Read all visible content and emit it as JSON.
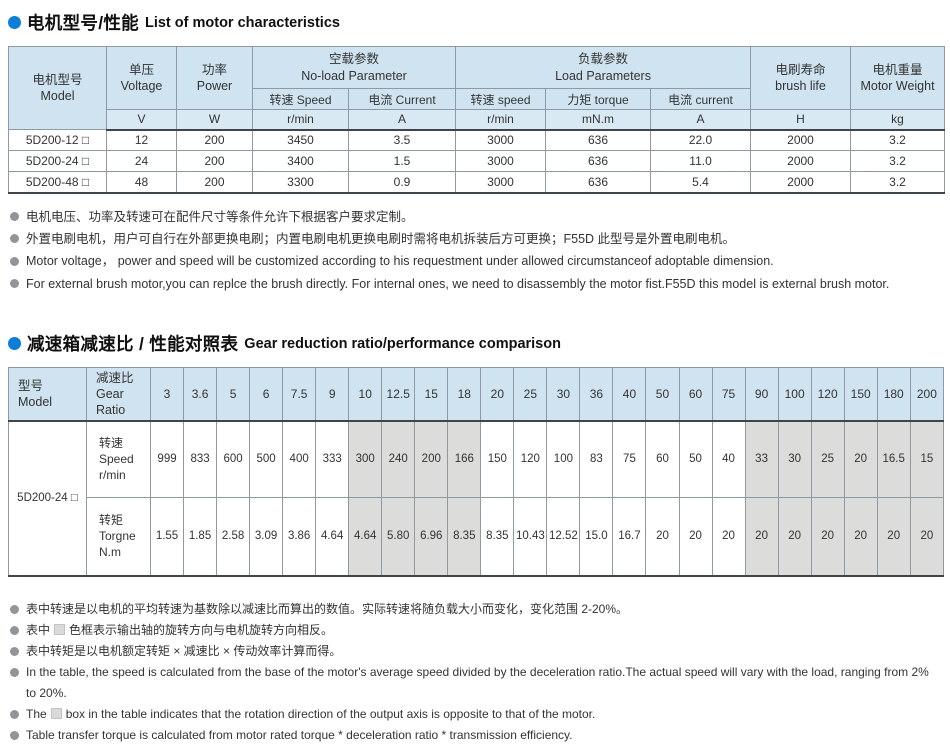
{
  "colors": {
    "accent_blue": "#0d7ed8",
    "header_bg": "#cfe4f0",
    "unit_row_bg": "#d8e9f4",
    "shaded_cell": "#dcdcda",
    "note_bullet": "#8f9599"
  },
  "section1": {
    "title_zh": "电机型号/性能",
    "title_en": "List of motor characteristics",
    "table": {
      "col_model": {
        "zh": "电机型号",
        "en": "Model"
      },
      "col_voltage": {
        "zh": "单压",
        "en": "Voltage",
        "unit": "V"
      },
      "col_power": {
        "zh": "功率",
        "en": "Power",
        "unit": "W"
      },
      "group_noload": {
        "zh": "空载参数",
        "en": "No-load Parameter",
        "cols": [
          {
            "label": "转速 Speed",
            "unit": "r/min"
          },
          {
            "label": "电流 Current",
            "unit": "A"
          }
        ]
      },
      "group_load": {
        "zh": "负载参数",
        "en": "Load Parameters",
        "cols": [
          {
            "label": "转速 speed",
            "unit": "r/min"
          },
          {
            "label": "力矩 torque",
            "unit": "mN.m"
          },
          {
            "label": "电流 current",
            "unit": "A"
          }
        ]
      },
      "col_brush": {
        "zh": "电刷寿命",
        "en": "brush life",
        "unit": "H"
      },
      "col_weight": {
        "zh": "电机重量",
        "en": "Motor Weight",
        "unit": "kg"
      },
      "rows": [
        [
          "5D200-12 □",
          "12",
          "200",
          "3450",
          "3.5",
          "3000",
          "636",
          "22.0",
          "2000",
          "3.2"
        ],
        [
          "5D200-24 □",
          "24",
          "200",
          "3400",
          "1.5",
          "3000",
          "636",
          "11.0",
          "2000",
          "3.2"
        ],
        [
          "5D200-48 □",
          "48",
          "200",
          "3300",
          "0.9",
          "3000",
          "636",
          "5.4",
          "2000",
          "3.2"
        ]
      ]
    },
    "notes": [
      {
        "pre": "电机电压、功率及转速可在配件尺寸等条件允许下根据客户要求定制。",
        "box": false,
        "post": ""
      },
      {
        "pre": "外置电刷电机，用户可自行在外部更换电刷；内置电刷电机更换电刷时需将电机拆装后方可更换；F55D 此型号是外置电刷电机。",
        "box": false,
        "post": ""
      },
      {
        "pre": "Motor voltage， power and speed will be customized according to his requestment under allowed circumstanceof adoptable dimension.",
        "box": false,
        "post": ""
      },
      {
        "pre": "For external brush motor,you can replce the brush directly. For internal ones, we need to disassembly the motor fist.F55D this model is external brush motor.",
        "box": false,
        "post": ""
      }
    ]
  },
  "section2": {
    "title_zh": "减速箱减速比 / 性能对照表",
    "title_en": "Gear reduction ratio/performance comparison",
    "table": {
      "col_model": {
        "zh": "型号",
        "en": "Model"
      },
      "col_ratio": {
        "zh": "减速比",
        "en": "Gear Ratio"
      },
      "model": "5D200-24 □",
      "ratios": [
        "3",
        "3.6",
        "5",
        "6",
        "7.5",
        "9",
        "10",
        "12.5",
        "15",
        "18",
        "20",
        "25",
        "30",
        "36",
        "40",
        "50",
        "60",
        "75",
        "90",
        "100",
        "120",
        "150",
        "180",
        "200"
      ],
      "row_speed": {
        "label_zh": "转速",
        "label_en": "Speed",
        "unit": "r/min",
        "values": [
          "999",
          "833",
          "600",
          "500",
          "400",
          "333",
          "300",
          "240",
          "200",
          "166",
          "150",
          "120",
          "100",
          "83",
          "75",
          "60",
          "50",
          "40",
          "33",
          "30",
          "25",
          "20",
          "16.5",
          "15"
        ]
      },
      "row_torque": {
        "label_zh": "转矩",
        "label_en": "Torgne",
        "unit": "N.m",
        "values": [
          "1.55",
          "1.85",
          "2.58",
          "3.09",
          "3.86",
          "4.64",
          "4.64",
          "5.80",
          "6.96",
          "8.35",
          "8.35",
          "10.43",
          "12.52",
          "15.0",
          "16.7",
          "20",
          "20",
          "20",
          "20",
          "20",
          "20",
          "20",
          "20",
          "20"
        ]
      },
      "shaded_indices": [
        6,
        7,
        8,
        9,
        18,
        19,
        20,
        21,
        22,
        23
      ]
    },
    "notes": [
      {
        "pre": "表中转速是以电机的平均转速为基数除以减速比而算出的数值。实际转速将随负载大小而变化，变化范围 2-20%。",
        "box": false,
        "post": ""
      },
      {
        "pre": "表中",
        "box": true,
        "post": "色框表示输出轴的旋转方向与电机旋转方向相反。"
      },
      {
        "pre": "表中转矩是以电机额定转矩 × 减速比 × 传动效率计算而得。",
        "box": false,
        "post": ""
      },
      {
        "pre": "In the table, the speed is calculated from the base of the motor's average speed  divided by the deceleration ratio.The actual speed will vary with the load, ranging from 2% to 20%.",
        "box": false,
        "post": ""
      },
      {
        "pre": "The",
        "box": true,
        "post": "box in the table indicates that the rotation direction of the output axis is opposite to that of the motor."
      },
      {
        "pre": "Table transfer torque is calculated from motor rated torque * deceleration ratio * transmission efficiency.",
        "box": false,
        "post": ""
      }
    ]
  }
}
